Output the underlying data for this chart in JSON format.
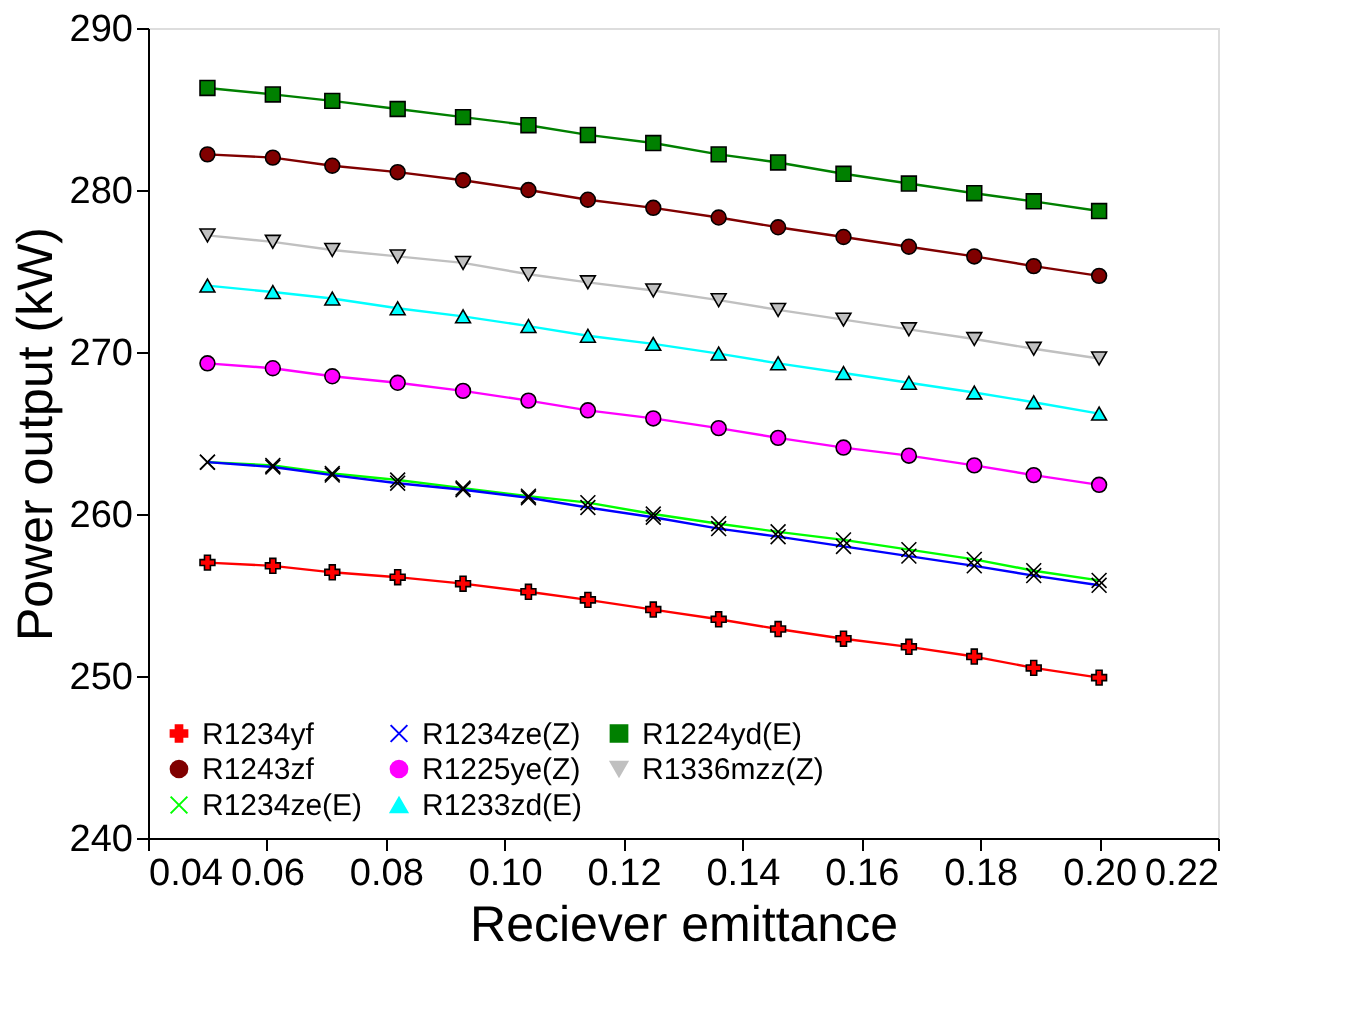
{
  "chart_data": {
    "type": "line",
    "xlabel": "Reciever emittance",
    "ylabel": "Power output (kW)",
    "x": [
      0.05,
      0.061,
      0.071,
      0.082,
      0.093,
      0.104,
      0.114,
      0.125,
      0.136,
      0.146,
      0.157,
      0.168,
      0.179,
      0.189,
      0.2
    ],
    "xlim": [
      0.04,
      0.22
    ],
    "xticks": [
      {
        "value": 0.04,
        "label": "0.04"
      },
      0.06,
      0.08,
      {
        "value": 0.1,
        "label": "0.10"
      },
      0.12,
      0.14,
      0.16,
      0.18,
      {
        "value": 0.2,
        "label": "0.20"
      },
      0.22
    ],
    "ylim": [
      240,
      290
    ],
    "yticks": [
      240,
      250,
      260,
      270,
      280,
      290
    ],
    "grid": false,
    "legend": "bottom left",
    "series": [
      {
        "name": "R1234yf",
        "color": "#ff0000",
        "marker": "plus",
        "values": [
          257.0,
          256.8,
          256.4,
          256.1,
          255.7,
          255.2,
          254.7,
          254.1,
          253.5,
          252.9,
          252.3,
          251.8,
          251.2,
          250.5,
          249.9
        ]
      },
      {
        "name": "R1243zf",
        "color": "#800000",
        "marker": "circle",
        "values": [
          282.2,
          282.0,
          281.5,
          281.1,
          280.6,
          280.0,
          279.4,
          278.9,
          278.3,
          277.7,
          277.1,
          276.5,
          275.9,
          275.3,
          274.7
        ]
      },
      {
        "name": "R1234ze(E)",
        "color": "#00ff00",
        "marker": "cross",
        "values": [
          263.2,
          263.0,
          262.5,
          262.1,
          261.6,
          261.1,
          260.7,
          260.0,
          259.4,
          258.9,
          258.4,
          257.8,
          257.2,
          256.5,
          255.9
        ]
      },
      {
        "name": "R1234ze(Z)",
        "color": "#0000ff",
        "marker": "cross",
        "values": [
          263.2,
          262.9,
          262.4,
          261.9,
          261.5,
          261.0,
          260.4,
          259.8,
          259.1,
          258.6,
          258.0,
          257.4,
          256.8,
          256.2,
          255.6
        ]
      },
      {
        "name": "R1225ye(Z)",
        "color": "#ff00ff",
        "marker": "circle",
        "values": [
          269.3,
          269.0,
          268.5,
          268.1,
          267.6,
          267.0,
          266.4,
          265.9,
          265.3,
          264.7,
          264.1,
          263.6,
          263.0,
          262.4,
          261.8
        ]
      },
      {
        "name": "R1233zd(E)",
        "color": "#00ffff",
        "marker": "triangle",
        "values": [
          274.1,
          273.7,
          273.3,
          272.7,
          272.2,
          271.6,
          271.0,
          270.5,
          269.9,
          269.3,
          268.7,
          268.1,
          267.5,
          266.9,
          266.2
        ]
      },
      {
        "name": "R1224yd(E)",
        "color": "#008000",
        "marker": "square",
        "values": [
          286.3,
          285.9,
          285.5,
          285.0,
          284.5,
          284.0,
          283.4,
          282.9,
          282.2,
          281.7,
          281.0,
          280.4,
          279.8,
          279.3,
          278.7
        ]
      },
      {
        "name": "R1336mzz(Z)",
        "color": "#c0c0c0",
        "marker": "triangle-down",
        "values": [
          277.2,
          276.8,
          276.3,
          275.9,
          275.5,
          274.8,
          274.3,
          273.8,
          273.2,
          272.6,
          272.0,
          271.4,
          270.8,
          270.2,
          269.6
        ]
      }
    ]
  }
}
